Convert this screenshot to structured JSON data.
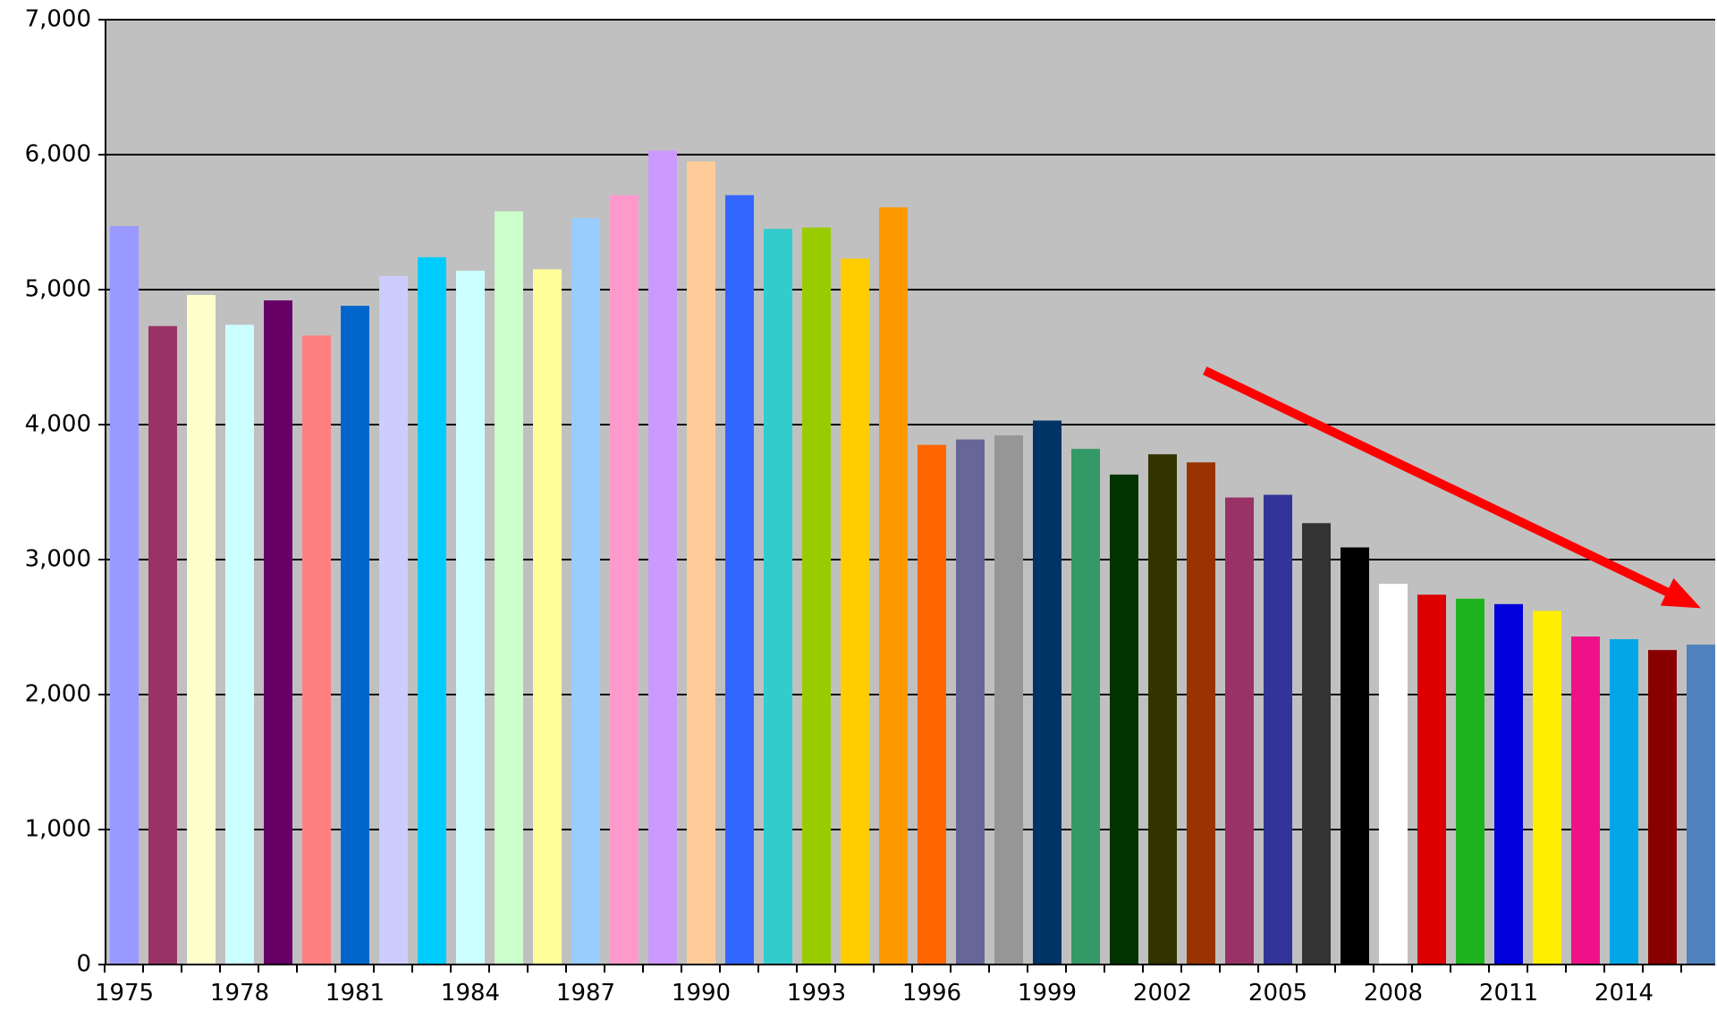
{
  "chart_data": {
    "type": "bar",
    "title": "",
    "xlabel": "",
    "ylabel": "",
    "ylim": [
      0,
      7000
    ],
    "y_ticks": [
      0,
      1000,
      2000,
      3000,
      4000,
      5000,
      6000,
      7000
    ],
    "y_tick_labels": [
      "0",
      "1,000",
      "2,000",
      "3,000",
      "4,000",
      "5,000",
      "6,000",
      "7,000"
    ],
    "grid": true,
    "legend": "none",
    "plot_background": "#c0c0c0",
    "categories": [
      "1975",
      "1976",
      "1977",
      "1978",
      "1979",
      "1980",
      "1981",
      "1982",
      "1983",
      "1984",
      "1985",
      "1986",
      "1987",
      "1988",
      "1989",
      "1990",
      "1991",
      "1992",
      "1993",
      "1994",
      "1995",
      "1996",
      "1997",
      "1998",
      "1999",
      "2000",
      "2001",
      "2002",
      "2003",
      "2004",
      "2005",
      "2006",
      "2007",
      "2008",
      "2009",
      "2010",
      "2011",
      "2012",
      "2013",
      "2014",
      "2015",
      "2016"
    ],
    "x_tick_labels": [
      "1975",
      "",
      "",
      "1978",
      "",
      "",
      "1981",
      "",
      "",
      "1984",
      "",
      "",
      "1987",
      "",
      "",
      "1990",
      "",
      "",
      "1993",
      "",
      "",
      "1996",
      "",
      "",
      "1999",
      "",
      "",
      "2002",
      "",
      "",
      "2005",
      "",
      "",
      "2008",
      "",
      "",
      "2011",
      "",
      "",
      "2014",
      "",
      ""
    ],
    "values": [
      5470,
      4730,
      4960,
      4740,
      4920,
      4660,
      4880,
      5100,
      5240,
      5140,
      5580,
      5150,
      5530,
      5700,
      6030,
      5950,
      5700,
      5450,
      5460,
      5230,
      5610,
      3850,
      3890,
      3920,
      4030,
      3820,
      3630,
      3780,
      3720,
      3460,
      3480,
      3270,
      3090,
      2820,
      2740,
      2710,
      2670,
      2620,
      2430,
      2410,
      2330,
      2370
    ],
    "colors": [
      "#9999ff",
      "#993366",
      "#ffffcc",
      "#ccffff",
      "#660066",
      "#ff8080",
      "#0066cc",
      "#ccccff",
      "#00ccff",
      "#ccffff",
      "#ccffcc",
      "#ffff99",
      "#99ccff",
      "#ff99cc",
      "#cc99ff",
      "#ffcc99",
      "#3366ff",
      "#33cccc",
      "#99cc00",
      "#ffcc00",
      "#ff9900",
      "#ff6600",
      "#666699",
      "#969696",
      "#003366",
      "#339966",
      "#003300",
      "#333300",
      "#993300",
      "#993366",
      "#333399",
      "#333333",
      "#000000",
      "#ffffff",
      "#dd0000",
      "#1eb31e",
      "#0000dd",
      "#ffee00",
      "#ee1188",
      "#00a6e6",
      "#880000",
      "#4f81bd"
    ],
    "annotations": [
      {
        "type": "arrow",
        "color": "#ff0000",
        "meaning": "decreasing trend",
        "from_x": 2003.1,
        "from_y": 4400,
        "to_x": 2016.0,
        "to_y": 2640
      }
    ]
  }
}
